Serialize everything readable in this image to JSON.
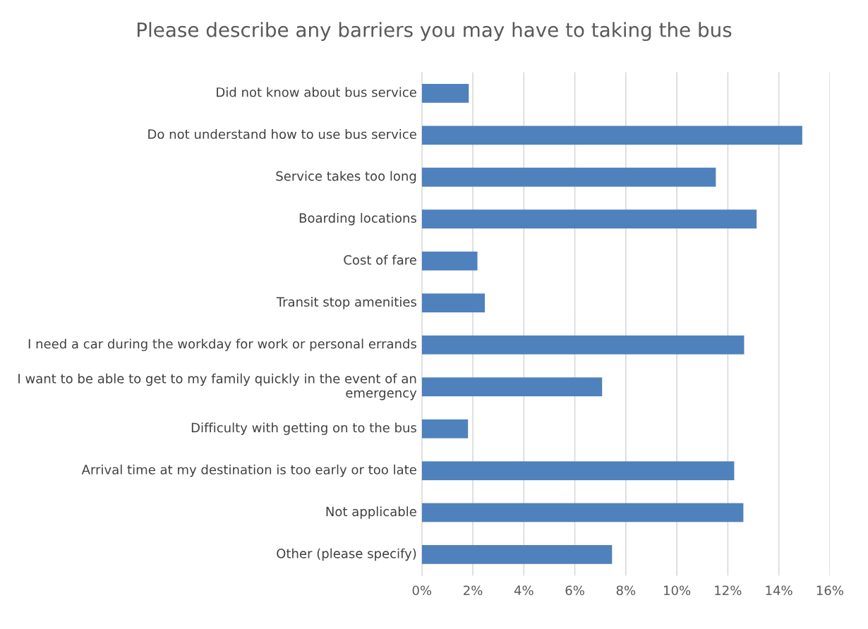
{
  "chart_data": {
    "type": "bar",
    "orientation": "horizontal",
    "title": "Please describe any barriers you may have to taking the bus",
    "categories": [
      "Did not know about bus service",
      "Do not understand how to use bus service",
      "Service takes too long",
      "Boarding locations",
      "Cost of fare",
      "Transit stop amenities",
      "I need a car during the workday for work or personal errands",
      "I want to be able to get to my family quickly in the event of an emergency",
      "Difficulty with getting on to the bus",
      "Arrival time at my destination is too early or too late",
      "Not applicable",
      "Other (please specify)"
    ],
    "values": [
      1.84,
      14.92,
      11.53,
      13.13,
      2.18,
      2.47,
      12.64,
      7.07,
      1.81,
      12.25,
      12.61,
      7.46
    ],
    "color": "#4f81bd",
    "xlim": [
      0,
      16
    ],
    "xticks": [
      {
        "value": 0,
        "label": "0%"
      },
      {
        "value": 2,
        "label": "2%"
      },
      {
        "value": 4,
        "label": "4%"
      },
      {
        "value": 6,
        "label": "6%"
      },
      {
        "value": 8,
        "label": "8%"
      },
      {
        "value": 10,
        "label": "10%"
      },
      {
        "value": 12,
        "label": "12%"
      },
      {
        "value": 14,
        "label": "14%"
      },
      {
        "value": 16,
        "label": "16%"
      }
    ],
    "grid": "x"
  }
}
